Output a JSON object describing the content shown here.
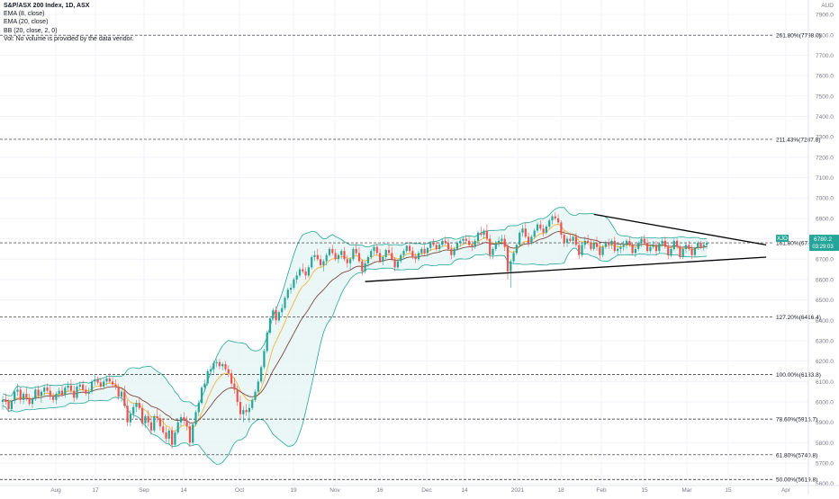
{
  "legend": {
    "title": "S&P/ASX 200 Index, 1D, ASX",
    "ema8": "EMA (8, close)",
    "ema20": "EMA (20, close)",
    "bb": "BB (20, close, 2, 0)",
    "vol": "Vol: No volume is provided by the data vendor."
  },
  "currency": "AUD",
  "colors": {
    "up": "#26a69a",
    "down": "#ef5350",
    "bb_band": "#26a69a",
    "bb_fill": "#e3f4f2",
    "ema8": "#f2b43c",
    "ema20": "#7b4a43",
    "grid": "#f0f3fa",
    "axis_text": "#787b86",
    "price_label": "#26a69a"
  },
  "price_tag": {
    "symbol": "XJO",
    "price": "6780.2",
    "timer": "03:29:03"
  },
  "chart_data": {
    "type": "candlestick",
    "title": "S&P/ASX 200 Index, 1D, ASX",
    "y_axis_ticks": [
      7900,
      7800,
      7700,
      7600,
      7500,
      7400,
      7300,
      7200,
      7100,
      7000,
      6900,
      6800,
      6700,
      6600,
      6500,
      6400,
      6300,
      6200,
      6100,
      6000,
      5900,
      5800,
      5700,
      5600
    ],
    "ylim": [
      5590,
      7940
    ],
    "x_axis_labels": [
      "Aug",
      "17",
      "Sep",
      "14",
      "Oct",
      "19",
      "Nov",
      "16",
      "Dec",
      "14",
      "2021",
      "18",
      "Feb",
      "15",
      "Mar",
      "15",
      "Apr"
    ],
    "fib_levels": [
      {
        "label": "261.80%(7798.0)",
        "value": 7798.0
      },
      {
        "label": "211.43%(7287.8)",
        "value": 7287.8
      },
      {
        "label": "161.80%(6780.2)",
        "value": 6780.2
      },
      {
        "label": "127.20%(6416.4)",
        "value": 6416.4
      },
      {
        "label": "100.00%(6133.8)",
        "value": 6133.8
      },
      {
        "label": "78.60%(5915.7)",
        "value": 5915.7
      },
      {
        "label": "61.80%(5740.8)",
        "value": 5740.8
      },
      {
        "label": "50.00%(5619.8)",
        "value": 5619.8
      }
    ],
    "trendlines": [
      {
        "name": "upper",
        "from": {
          "bar": 199,
          "value": 6920
        },
        "to": {
          "bar": 257,
          "value": 6770
        }
      },
      {
        "name": "lower",
        "from": {
          "bar": 122,
          "value": 6590
        },
        "to": {
          "bar": 257,
          "value": 6710
        }
      }
    ],
    "candles": [
      [
        6000,
        6030,
        5960,
        6010
      ],
      [
        6010,
        6040,
        5985,
        6000
      ],
      [
        6000,
        6015,
        5950,
        5965
      ],
      [
        5965,
        6010,
        5950,
        6005
      ],
      [
        6005,
        6060,
        5990,
        6050
      ],
      [
        6050,
        6090,
        6030,
        6060
      ],
      [
        6060,
        6075,
        5990,
        6010
      ],
      [
        6010,
        6050,
        5990,
        6040
      ],
      [
        6040,
        6070,
        6005,
        6020
      ],
      [
        6020,
        6040,
        5980,
        5990
      ],
      [
        5990,
        6025,
        5970,
        6015
      ],
      [
        6015,
        6070,
        6005,
        6060
      ],
      [
        6060,
        6080,
        6020,
        6030
      ],
      [
        6030,
        6060,
        5995,
        6050
      ],
      [
        6050,
        6080,
        6030,
        6070
      ],
      [
        6070,
        6090,
        6045,
        6055
      ],
      [
        6055,
        6080,
        6010,
        6025
      ],
      [
        6025,
        6045,
        5995,
        6010
      ],
      [
        6010,
        6050,
        5990,
        6040
      ],
      [
        6040,
        6070,
        6020,
        6055
      ],
      [
        6055,
        6080,
        6025,
        6035
      ],
      [
        6035,
        6080,
        6020,
        6070
      ],
      [
        6070,
        6100,
        6050,
        6080
      ],
      [
        6080,
        6110,
        6045,
        6055
      ],
      [
        6055,
        6080,
        6000,
        6020
      ],
      [
        6020,
        6090,
        6010,
        6075
      ],
      [
        6075,
        6100,
        6055,
        6085
      ],
      [
        6085,
        6105,
        6050,
        6060
      ],
      [
        6060,
        6080,
        6030,
        6040
      ],
      [
        6040,
        6070,
        6010,
        6050
      ],
      [
        6050,
        6110,
        6040,
        6100
      ],
      [
        6100,
        6130,
        6080,
        6110
      ],
      [
        6110,
        6125,
        6085,
        6095
      ],
      [
        6095,
        6120,
        6060,
        6075
      ],
      [
        6075,
        6110,
        6060,
        6100
      ],
      [
        6100,
        6130,
        6080,
        6115
      ],
      [
        6115,
        6140,
        6090,
        6100
      ],
      [
        6100,
        6120,
        6070,
        6085
      ],
      [
        6085,
        6110,
        6060,
        6075
      ],
      [
        6075,
        6090,
        6010,
        6025
      ],
      [
        6025,
        6060,
        6000,
        6050
      ],
      [
        6050,
        6080,
        5970,
        5980
      ],
      [
        5980,
        6010,
        5880,
        5900
      ],
      [
        5900,
        5960,
        5880,
        5940
      ],
      [
        5940,
        5990,
        5920,
        5975
      ],
      [
        5975,
        6010,
        5950,
        5995
      ],
      [
        5995,
        6020,
        5960,
        5970
      ],
      [
        5970,
        5990,
        5880,
        5895
      ],
      [
        5895,
        5940,
        5870,
        5930
      ],
      [
        5930,
        5960,
        5880,
        5900
      ],
      [
        5900,
        5930,
        5840,
        5860
      ],
      [
        5860,
        5940,
        5850,
        5930
      ],
      [
        5930,
        5970,
        5900,
        5920
      ],
      [
        5920,
        5940,
        5860,
        5880
      ],
      [
        5880,
        5920,
        5840,
        5850
      ],
      [
        5850,
        5880,
        5800,
        5820
      ],
      [
        5820,
        5870,
        5790,
        5860
      ],
      [
        5860,
        5880,
        5770,
        5790
      ],
      [
        5790,
        5860,
        5780,
        5850
      ],
      [
        5850,
        5910,
        5840,
        5900
      ],
      [
        5900,
        5940,
        5880,
        5925
      ],
      [
        5925,
        5950,
        5890,
        5910
      ],
      [
        5910,
        5930,
        5860,
        5880
      ],
      [
        5880,
        5900,
        5780,
        5800
      ],
      [
        5800,
        5900,
        5790,
        5890
      ],
      [
        5890,
        5960,
        5880,
        5950
      ],
      [
        5950,
        6010,
        5930,
        5995
      ],
      [
        5995,
        6080,
        5985,
        6070
      ],
      [
        6070,
        6110,
        6050,
        6090
      ],
      [
        6090,
        6160,
        6080,
        6150
      ],
      [
        6150,
        6180,
        6130,
        6160
      ],
      [
        6160,
        6200,
        6140,
        6190
      ],
      [
        6190,
        6210,
        6170,
        6195
      ],
      [
        6195,
        6210,
        6160,
        6175
      ],
      [
        6175,
        6195,
        6155,
        6185
      ],
      [
        6185,
        6200,
        6150,
        6160
      ],
      [
        6160,
        6180,
        6120,
        6140
      ],
      [
        6140,
        6160,
        6070,
        6090
      ],
      [
        6090,
        6120,
        6040,
        6060
      ],
      [
        6060,
        6080,
        5980,
        6000
      ],
      [
        6000,
        6030,
        5920,
        5940
      ],
      [
        5940,
        5980,
        5900,
        5960
      ],
      [
        5960,
        5990,
        5930,
        5950
      ],
      [
        5950,
        5990,
        5900,
        5970
      ],
      [
        5970,
        6020,
        5960,
        6010
      ],
      [
        6010,
        6060,
        6000,
        6050
      ],
      [
        6050,
        6110,
        6040,
        6100
      ],
      [
        6100,
        6180,
        6090,
        6170
      ],
      [
        6170,
        6260,
        6160,
        6250
      ],
      [
        6250,
        6350,
        6240,
        6340
      ],
      [
        6340,
        6420,
        6330,
        6410
      ],
      [
        6410,
        6460,
        6400,
        6450
      ],
      [
        6450,
        6470,
        6380,
        6400
      ],
      [
        6400,
        6450,
        6390,
        6440
      ],
      [
        6440,
        6480,
        6420,
        6460
      ],
      [
        6460,
        6520,
        6450,
        6510
      ],
      [
        6510,
        6560,
        6500,
        6550
      ],
      [
        6550,
        6580,
        6530,
        6560
      ],
      [
        6560,
        6610,
        6550,
        6600
      ],
      [
        6600,
        6640,
        6580,
        6620
      ],
      [
        6620,
        6660,
        6610,
        6650
      ],
      [
        6650,
        6680,
        6630,
        6640
      ],
      [
        6640,
        6660,
        6600,
        6620
      ],
      [
        6620,
        6670,
        6610,
        6660
      ],
      [
        6660,
        6720,
        6650,
        6710
      ],
      [
        6710,
        6740,
        6690,
        6720
      ],
      [
        6720,
        6750,
        6690,
        6700
      ],
      [
        6700,
        6720,
        6660,
        6670
      ],
      [
        6670,
        6700,
        6640,
        6690
      ],
      [
        6690,
        6730,
        6670,
        6720
      ],
      [
        6720,
        6760,
        6710,
        6750
      ],
      [
        6750,
        6770,
        6720,
        6730
      ],
      [
        6730,
        6750,
        6690,
        6700
      ],
      [
        6700,
        6730,
        6680,
        6720
      ],
      [
        6720,
        6750,
        6700,
        6740
      ],
      [
        6740,
        6760,
        6690,
        6700
      ],
      [
        6700,
        6720,
        6660,
        6680
      ],
      [
        6680,
        6710,
        6650,
        6700
      ],
      [
        6700,
        6760,
        6690,
        6750
      ],
      [
        6750,
        6780,
        6720,
        6730
      ],
      [
        6730,
        6760,
        6680,
        6690
      ],
      [
        6690,
        6700,
        6620,
        6640
      ],
      [
        6640,
        6690,
        6630,
        6680
      ],
      [
        6680,
        6720,
        6660,
        6710
      ],
      [
        6710,
        6750,
        6700,
        6740
      ],
      [
        6740,
        6770,
        6720,
        6760
      ],
      [
        6760,
        6775,
        6720,
        6730
      ],
      [
        6730,
        6750,
        6680,
        6690
      ],
      [
        6690,
        6720,
        6670,
        6710
      ],
      [
        6710,
        6750,
        6700,
        6745
      ],
      [
        6745,
        6770,
        6720,
        6730
      ],
      [
        6730,
        6760,
        6690,
        6700
      ],
      [
        6700,
        6710,
        6640,
        6660
      ],
      [
        6660,
        6700,
        6650,
        6690
      ],
      [
        6690,
        6730,
        6680,
        6720
      ],
      [
        6720,
        6750,
        6700,
        6740
      ],
      [
        6740,
        6770,
        6730,
        6765
      ],
      [
        6765,
        6780,
        6730,
        6740
      ],
      [
        6740,
        6760,
        6700,
        6710
      ],
      [
        6710,
        6730,
        6680,
        6700
      ],
      [
        6700,
        6740,
        6690,
        6730
      ],
      [
        6730,
        6760,
        6720,
        6750
      ],
      [
        6750,
        6770,
        6720,
        6730
      ],
      [
        6730,
        6760,
        6710,
        6755
      ],
      [
        6755,
        6790,
        6740,
        6780
      ],
      [
        6780,
        6800,
        6760,
        6770
      ],
      [
        6770,
        6790,
        6740,
        6750
      ],
      [
        6750,
        6780,
        6730,
        6770
      ],
      [
        6770,
        6800,
        6760,
        6790
      ],
      [
        6790,
        6810,
        6770,
        6780
      ],
      [
        6780,
        6800,
        6740,
        6750
      ],
      [
        6750,
        6770,
        6700,
        6720
      ],
      [
        6720,
        6760,
        6710,
        6750
      ],
      [
        6750,
        6790,
        6740,
        6780
      ],
      [
        6780,
        6800,
        6760,
        6790
      ],
      [
        6790,
        6810,
        6770,
        6800
      ],
      [
        6800,
        6820,
        6780,
        6790
      ],
      [
        6790,
        6810,
        6760,
        6770
      ],
      [
        6770,
        6790,
        6740,
        6760
      ],
      [
        6760,
        6800,
        6750,
        6790
      ],
      [
        6790,
        6840,
        6780,
        6830
      ],
      [
        6830,
        6860,
        6810,
        6820
      ],
      [
        6820,
        6850,
        6800,
        6840
      ],
      [
        6840,
        6870,
        6790,
        6800
      ],
      [
        6800,
        6820,
        6700,
        6720
      ],
      [
        6720,
        6760,
        6700,
        6750
      ],
      [
        6750,
        6790,
        6740,
        6780
      ],
      [
        6780,
        6810,
        6760,
        6790
      ],
      [
        6790,
        6820,
        6770,
        6800
      ],
      [
        6800,
        6820,
        6740,
        6760
      ],
      [
        6760,
        6780,
        6600,
        6640
      ],
      [
        6640,
        6700,
        6560,
        6690
      ],
      [
        6690,
        6740,
        6680,
        6730
      ],
      [
        6730,
        6780,
        6720,
        6770
      ],
      [
        6770,
        6840,
        6760,
        6830
      ],
      [
        6830,
        6870,
        6810,
        6850
      ],
      [
        6850,
        6880,
        6800,
        6810
      ],
      [
        6810,
        6830,
        6760,
        6780
      ],
      [
        6780,
        6820,
        6770,
        6810
      ],
      [
        6810,
        6850,
        6800,
        6840
      ],
      [
        6840,
        6880,
        6830,
        6870
      ],
      [
        6870,
        6890,
        6840,
        6850
      ],
      [
        6850,
        6870,
        6810,
        6830
      ],
      [
        6830,
        6870,
        6820,
        6860
      ],
      [
        6860,
        6900,
        6850,
        6890
      ],
      [
        6890,
        6920,
        6870,
        6910
      ],
      [
        6910,
        6930,
        6890,
        6900
      ],
      [
        6900,
        6920,
        6870,
        6880
      ],
      [
        6880,
        6890,
        6800,
        6820
      ],
      [
        6820,
        6840,
        6760,
        6780
      ],
      [
        6780,
        6810,
        6760,
        6800
      ],
      [
        6800,
        6830,
        6780,
        6790
      ],
      [
        6790,
        6820,
        6770,
        6810
      ],
      [
        6810,
        6830,
        6760,
        6770
      ],
      [
        6770,
        6790,
        6700,
        6720
      ],
      [
        6720,
        6780,
        6710,
        6770
      ],
      [
        6770,
        6810,
        6750,
        6790
      ],
      [
        6790,
        6820,
        6770,
        6780
      ],
      [
        6780,
        6800,
        6740,
        6750
      ],
      [
        6750,
        6790,
        6740,
        6780
      ],
      [
        6780,
        6810,
        6740,
        6760
      ],
      [
        6760,
        6780,
        6700,
        6720
      ],
      [
        6720,
        6770,
        6710,
        6760
      ],
      [
        6760,
        6790,
        6750,
        6780
      ],
      [
        6780,
        6800,
        6750,
        6770
      ],
      [
        6770,
        6800,
        6750,
        6790
      ],
      [
        6790,
        6810,
        6730,
        6740
      ],
      [
        6740,
        6770,
        6720,
        6750
      ],
      [
        6750,
        6780,
        6730,
        6760
      ],
      [
        6760,
        6790,
        6740,
        6770
      ],
      [
        6770,
        6800,
        6750,
        6790
      ],
      [
        6790,
        6810,
        6760,
        6770
      ],
      [
        6770,
        6780,
        6720,
        6730
      ],
      [
        6730,
        6760,
        6710,
        6750
      ],
      [
        6750,
        6790,
        6740,
        6780
      ],
      [
        6780,
        6810,
        6760,
        6800
      ],
      [
        6800,
        6820,
        6770,
        6780
      ],
      [
        6780,
        6800,
        6730,
        6740
      ],
      [
        6740,
        6770,
        6730,
        6760
      ],
      [
        6760,
        6790,
        6750,
        6770
      ],
      [
        6770,
        6790,
        6720,
        6740
      ],
      [
        6740,
        6780,
        6730,
        6775
      ],
      [
        6775,
        6800,
        6760,
        6790
      ],
      [
        6790,
        6810,
        6750,
        6760
      ],
      [
        6760,
        6780,
        6700,
        6720
      ],
      [
        6720,
        6760,
        6710,
        6750
      ],
      [
        6750,
        6800,
        6740,
        6790
      ],
      [
        6790,
        6800,
        6750,
        6760
      ],
      [
        6760,
        6770,
        6700,
        6710
      ],
      [
        6710,
        6760,
        6700,
        6750
      ],
      [
        6750,
        6780,
        6730,
        6770
      ],
      [
        6770,
        6790,
        6740,
        6750
      ],
      [
        6750,
        6770,
        6700,
        6720
      ],
      [
        6720,
        6760,
        6710,
        6755
      ],
      [
        6755,
        6790,
        6745,
        6780
      ],
      [
        6780,
        6790,
        6750,
        6760
      ],
      [
        6760,
        6780,
        6740,
        6770
      ],
      [
        6770,
        6790,
        6750,
        6780
      ]
    ]
  }
}
